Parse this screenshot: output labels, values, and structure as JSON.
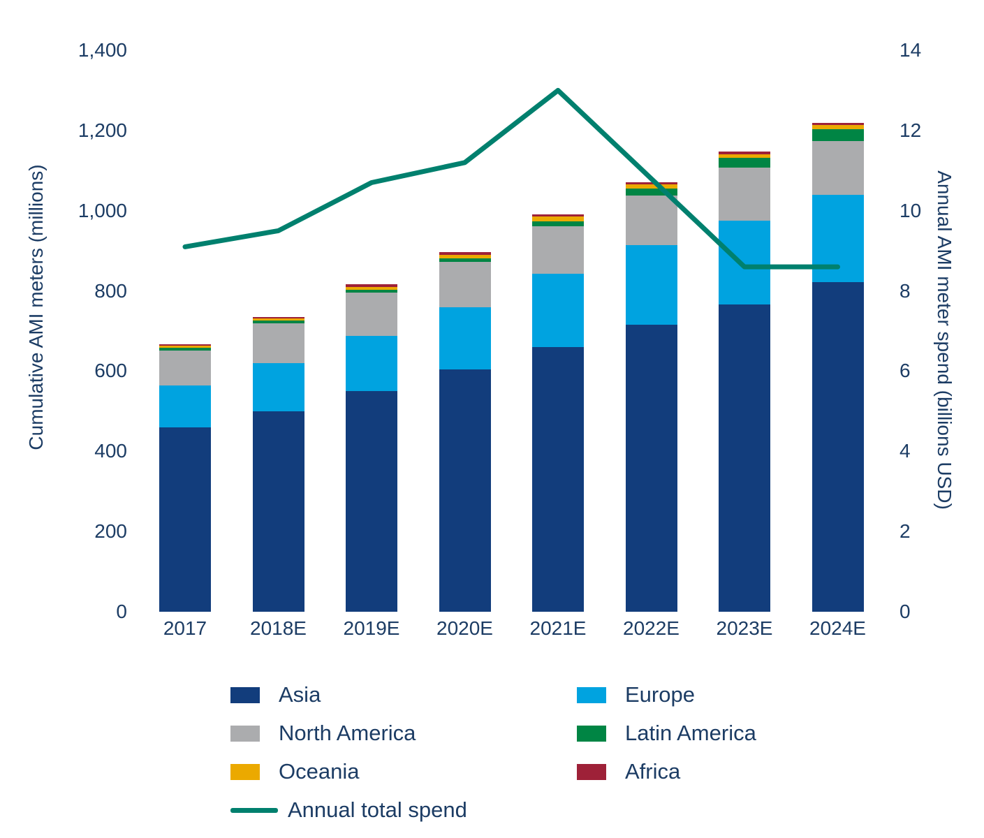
{
  "chart_data": {
    "type": "bar",
    "subtype": "stacked-bar-with-line-combo",
    "categories": [
      "2017",
      "2018E",
      "2019E",
      "2020E",
      "2021E",
      "2022E",
      "2023E",
      "2024E"
    ],
    "series": [
      {
        "name": "Asia",
        "type": "bar",
        "color": "#123d7c",
        "values": [
          460,
          500,
          550,
          605,
          660,
          715,
          766,
          822
        ]
      },
      {
        "name": "Europe",
        "type": "bar",
        "color": "#00a3e0",
        "values": [
          105,
          120,
          137,
          155,
          182,
          199,
          210,
          217
        ]
      },
      {
        "name": "North America",
        "type": "bar",
        "color": "#abacae",
        "values": [
          87,
          100,
          108,
          112,
          119,
          124,
          131,
          134
        ]
      },
      {
        "name": "Latin America",
        "type": "bar",
        "color": "#008544",
        "values": [
          6,
          6,
          8,
          10,
          13,
          18,
          25,
          30
        ]
      },
      {
        "name": "Oceania",
        "type": "bar",
        "color": "#eba900",
        "values": [
          5,
          5,
          7,
          8,
          11,
          9,
          9,
          10
        ]
      },
      {
        "name": "Africa",
        "type": "bar",
        "color": "#9e2138",
        "values": [
          4,
          4,
          6,
          6,
          6,
          6,
          6,
          6
        ]
      },
      {
        "name": "Annual total spend",
        "type": "line",
        "axis": "right",
        "color": "#00806e",
        "values": [
          9.1,
          9.5,
          10.7,
          11.2,
          13.0,
          10.8,
          8.6,
          8.6
        ]
      }
    ],
    "bar_totals": [
      667,
      735,
      816,
      896,
      991,
      1071,
      1147,
      1219
    ],
    "left_axis": {
      "label": "Cumulative AMI meters (millions)",
      "min": 0,
      "max": 1400,
      "tick_step": 200,
      "tick_labels": [
        "0",
        "200",
        "400",
        "600",
        "800",
        "1,000",
        "1,200",
        "1,400"
      ]
    },
    "right_axis": {
      "label": "Annual AMI meter spend (billions USD)",
      "min": 0,
      "max": 14,
      "tick_step": 2,
      "tick_labels": [
        "0",
        "2",
        "4",
        "6",
        "8",
        "10",
        "12",
        "14"
      ]
    },
    "grid": "off",
    "legend_position": "bottom",
    "legend": [
      {
        "label": "Asia",
        "color": "#123d7c",
        "swatch": "box",
        "col": 0,
        "row": 0
      },
      {
        "label": "Europe",
        "color": "#00a3e0",
        "swatch": "box",
        "col": 1,
        "row": 0
      },
      {
        "label": "North America",
        "color": "#abacae",
        "swatch": "box",
        "col": 0,
        "row": 1
      },
      {
        "label": "Latin America",
        "color": "#008544",
        "swatch": "box",
        "col": 1,
        "row": 1
      },
      {
        "label": "Oceania",
        "color": "#eba900",
        "swatch": "box",
        "col": 0,
        "row": 2
      },
      {
        "label": "Africa",
        "color": "#9e2138",
        "swatch": "box",
        "col": 1,
        "row": 2
      },
      {
        "label": "Annual total spend",
        "color": "#00806e",
        "swatch": "line",
        "col": 0,
        "row": 3
      }
    ],
    "text_color": "#1c3c64"
  }
}
